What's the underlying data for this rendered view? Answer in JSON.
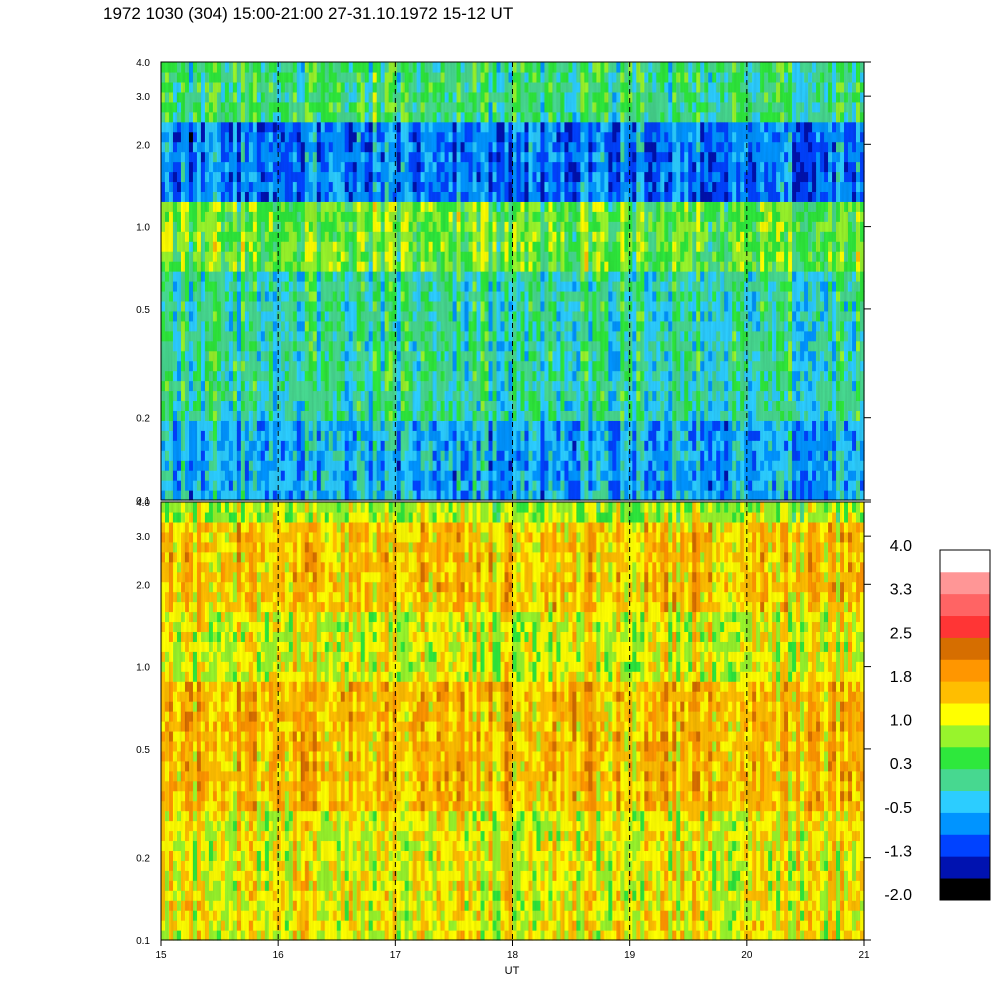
{
  "title": "1972 1030 (304) 15:00-21:00 27-31.10.1972  15-12 UT",
  "chart_data": {
    "type": "heatmap",
    "title": "1972 1030 (304) 15:00-21:00 27-31.10.1972  15-12 UT",
    "xlabel": "UT",
    "ylabel": "",
    "x_range": [
      15,
      21
    ],
    "x_ticks": [
      "15",
      "16",
      "17",
      "18",
      "19",
      "20",
      "21"
    ],
    "x_tick_values": [
      15,
      16,
      17,
      18,
      19,
      20,
      21
    ],
    "y_scale": "log",
    "y_range": [
      0.1,
      4.0
    ],
    "y_ticks": [
      "0.1",
      "0.2",
      "0.5",
      "1.0",
      "2.0",
      "3.0",
      "4.0"
    ],
    "y_tick_values": [
      0.1,
      0.2,
      0.5,
      1.0,
      2.0,
      3.0,
      4.0
    ],
    "grid": "dashed vertical lines at each hour",
    "panels": [
      {
        "name": "",
        "dominant_levels": [
          -0.5,
          0.3
        ],
        "description_levels_by_frequency": [
          {
            "y_range": [
              0.1,
              0.2
            ],
            "level": -0.5
          },
          {
            "y_range": [
              0.2,
              0.7
            ],
            "level": 0.0
          },
          {
            "y_range": [
              0.7,
              1.2
            ],
            "level": 0.6
          },
          {
            "y_range": [
              1.2,
              2.5
            ],
            "level": -0.8
          },
          {
            "y_range": [
              2.5,
              4.0
            ],
            "level": 0.2
          }
        ]
      },
      {
        "name": "",
        "dominant_levels": [
          1.0,
          1.8
        ],
        "description_levels_by_frequency": [
          {
            "y_range": [
              0.1,
              0.3
            ],
            "level": 1.2
          },
          {
            "y_range": [
              0.3,
              0.9
            ],
            "level": 1.6
          },
          {
            "y_range": [
              0.9,
              1.6
            ],
            "level": 1.1
          },
          {
            "y_range": [
              1.6,
              3.3
            ],
            "level": 1.5
          },
          {
            "y_range": [
              3.3,
              4.0
            ],
            "level": 0.9
          }
        ]
      }
    ],
    "colorbar": {
      "labels": [
        "4.0",
        "3.3",
        "2.5",
        "1.8",
        "1.0",
        "0.3",
        "-0.5",
        "-1.3",
        "-2.0"
      ],
      "range": [
        -2.0,
        4.0
      ],
      "colors": [
        "#000000",
        "#0012b0",
        "#0042ff",
        "#0094ff",
        "#2ccdff",
        "#47d890",
        "#2ee83c",
        "#98f42c",
        "#ffff00",
        "#ffbe00",
        "#ff9600",
        "#d66e00",
        "#ff3535",
        "#ff6464",
        "#ff9696",
        "#ffffff"
      ]
    }
  }
}
